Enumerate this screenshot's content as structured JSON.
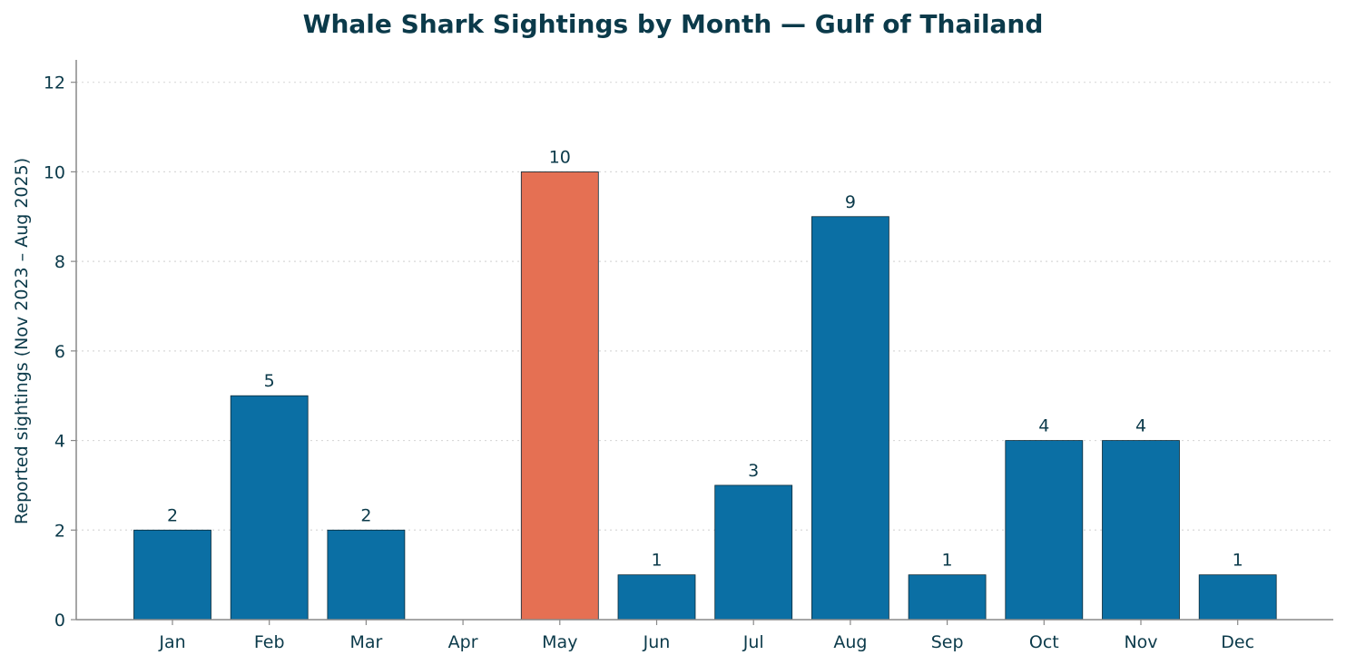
{
  "chart_data": {
    "type": "bar",
    "title": "Whale Shark Sightings by Month — Gulf of Thailand",
    "xlabel": "",
    "ylabel": "Reported sightings (Nov 2023 – Aug 2025)",
    "categories": [
      "Jan",
      "Feb",
      "Mar",
      "Apr",
      "May",
      "Jun",
      "Jul",
      "Aug",
      "Sep",
      "Oct",
      "Nov",
      "Dec"
    ],
    "values": [
      2,
      5,
      2,
      0,
      10,
      1,
      3,
      9,
      1,
      4,
      4,
      1
    ],
    "data_labels": [
      "2",
      "5",
      "2",
      "",
      "10",
      "1",
      "3",
      "9",
      "1",
      "4",
      "4",
      "1"
    ],
    "highlight_category": "May",
    "ylim": [
      0,
      12.5
    ],
    "yticks": [
      0,
      2,
      4,
      6,
      8,
      10,
      12
    ],
    "grid": "y-dotted",
    "colors": {
      "bar": "#0b6fa4",
      "highlight": "#e57053",
      "text": "#0b3a4a",
      "grid": "#d9d9d9",
      "axis": "#888888"
    }
  }
}
